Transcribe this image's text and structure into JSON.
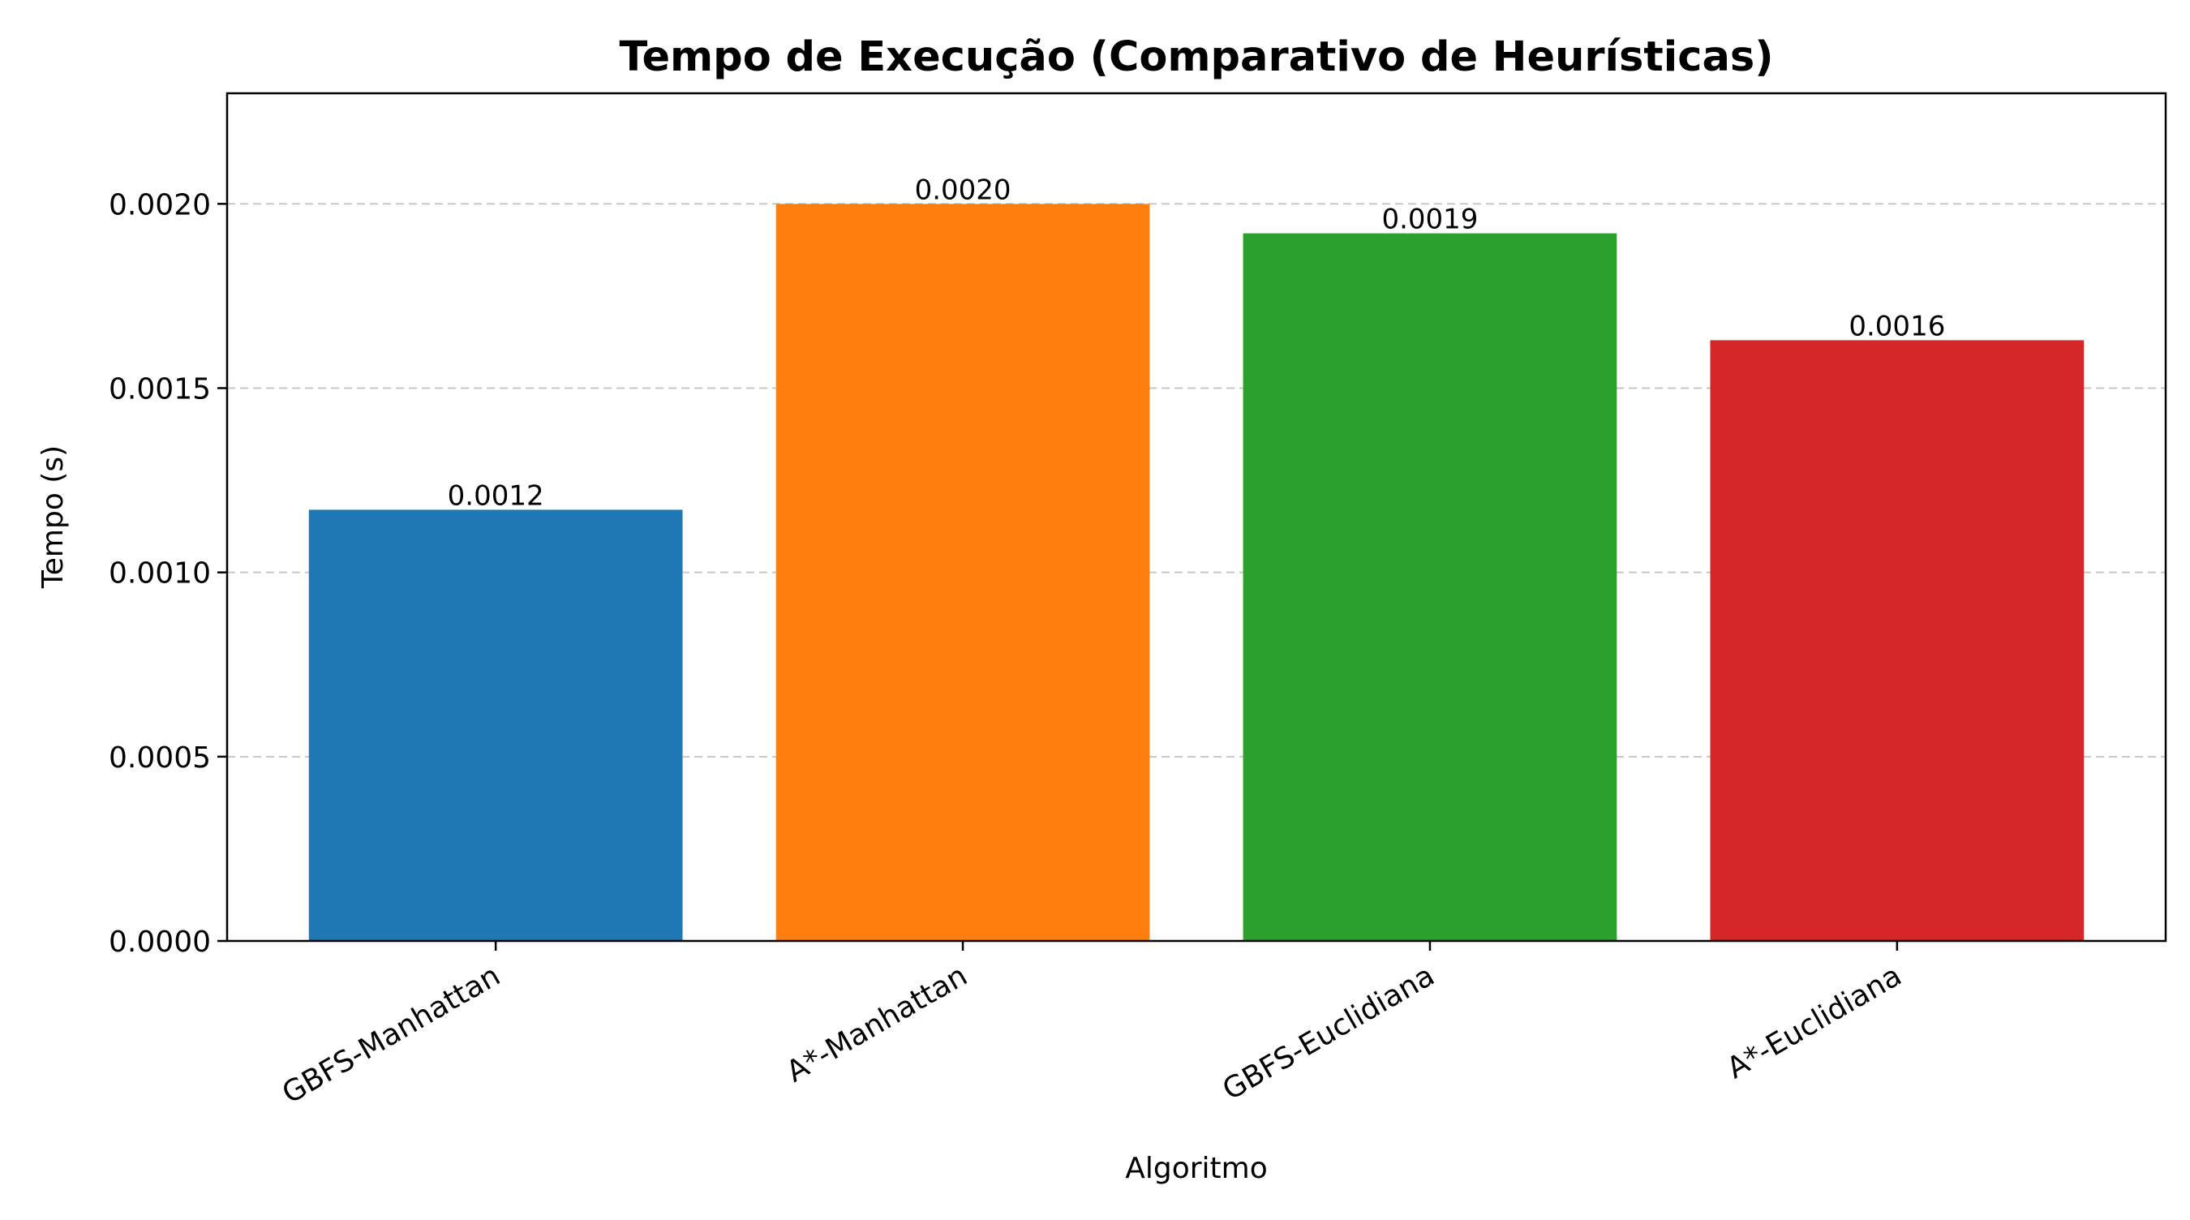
{
  "chart_data": {
    "type": "bar",
    "title": "Tempo de Execução (Comparativo de Heurísticas)",
    "xlabel": "Algoritmo",
    "ylabel": "Tempo (s)",
    "categories": [
      "GBFS-Manhattan",
      "A*-Manhattan",
      "GBFS-Euclidiana",
      "A*-Euclidiana"
    ],
    "values": [
      0.00117,
      0.002,
      0.00192,
      0.00163
    ],
    "value_labels": [
      "0.0012",
      "0.0020",
      "0.0019",
      "0.0016"
    ],
    "colors": [
      "#1f77b4",
      "#ff7f0e",
      "#2ca02c",
      "#d62728"
    ],
    "ylim": [
      0,
      0.0023
    ],
    "yticks": [
      0,
      0.0005,
      0.001,
      0.0015,
      0.002
    ],
    "ytick_labels": [
      "0.0000",
      "0.0005",
      "0.0010",
      "0.0015",
      "0.0020"
    ],
    "grid": "y, dashed",
    "legend": "none"
  }
}
